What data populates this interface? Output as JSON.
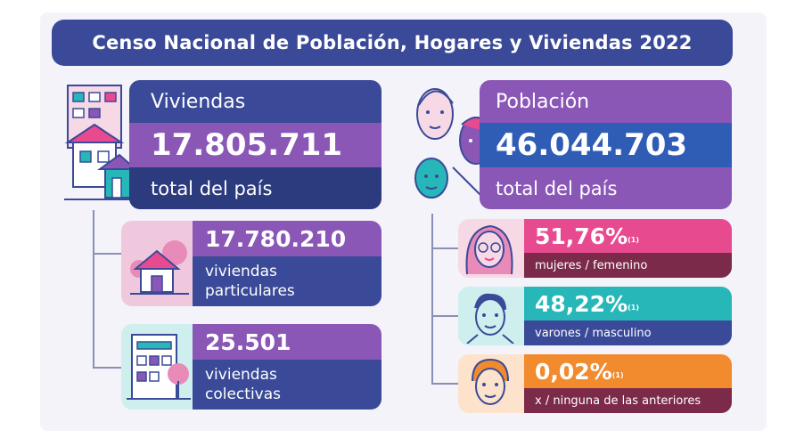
{
  "title": "Censo Nacional de Población, Hogares y Viviendas 2022",
  "viviendas": {
    "label": "Viviendas",
    "value": "17.805.711",
    "caption": "total del país",
    "particulares": {
      "value": "17.780.210",
      "line1": "viviendas",
      "line2": "particulares"
    },
    "colectivas": {
      "value": "25.501",
      "line1": "viviendas",
      "line2": "colectivas"
    }
  },
  "poblacion": {
    "label": "Población",
    "value": "46.044.703",
    "caption": "total del país",
    "mujeres": {
      "value": "51,76%",
      "note": "(1)",
      "caption": "mujeres / femenino"
    },
    "varones": {
      "value": "48,22%",
      "note": "(1)",
      "caption": "varones / masculino"
    },
    "otros": {
      "value": "0,02%",
      "note": "(1)",
      "caption": "x / ninguna de las anteriores"
    }
  },
  "colors": {
    "navy": "#3a4a98",
    "dark_navy": "#2c3a7e",
    "purple": "#8a57b6",
    "blue": "#2f5db5",
    "pink": "#e84a8f",
    "teal": "#27b7b8",
    "orange": "#f28a2e",
    "maroon": "#7c2a4a"
  }
}
